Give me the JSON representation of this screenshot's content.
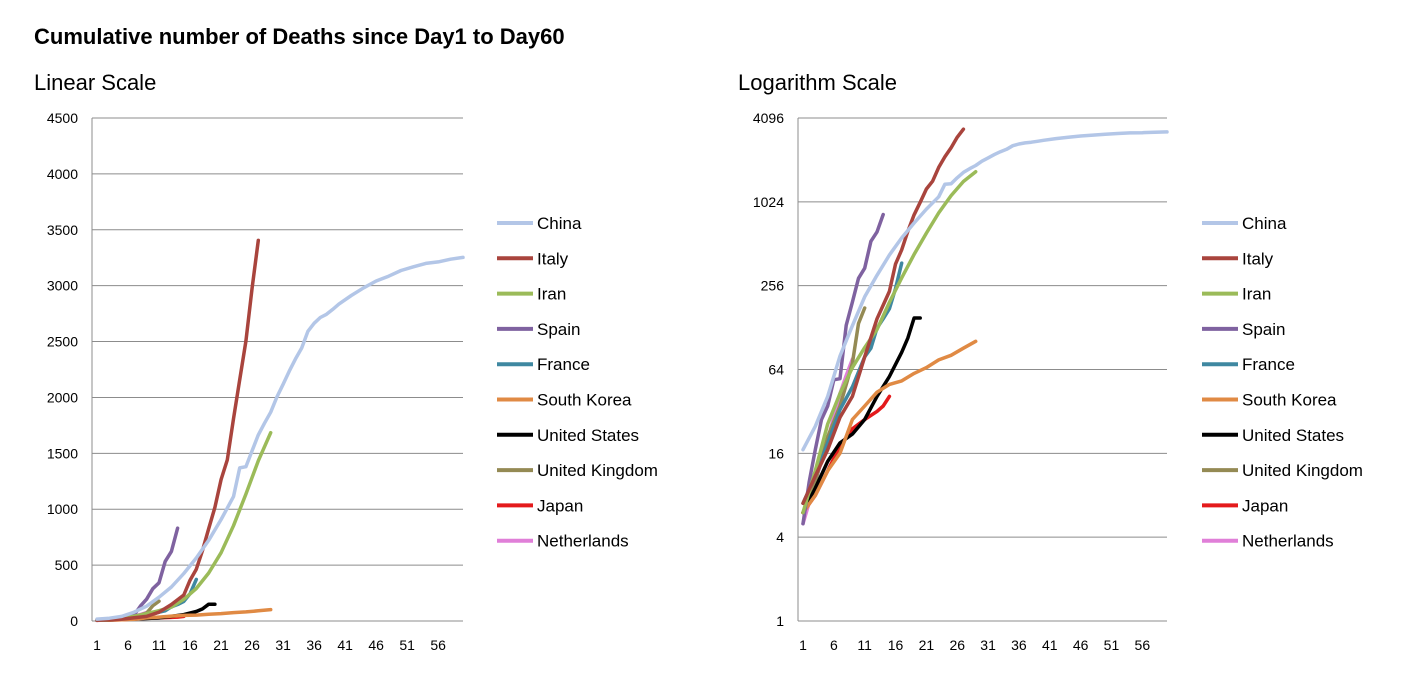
{
  "page": {
    "title": "Cumulative number of Deaths since Day1 to Day60",
    "linear_subtitle": "Linear Scale",
    "log_subtitle": "Logarithm Scale"
  },
  "chart_data": [
    {
      "type": "line",
      "title": "Linear Scale",
      "scale": "linear",
      "xlabel": "",
      "ylabel": "",
      "xlim": [
        1,
        60
      ],
      "ylim": [
        0,
        4500
      ],
      "x_ticks": [
        1,
        6,
        11,
        16,
        21,
        26,
        31,
        36,
        41,
        46,
        51,
        56
      ],
      "y_ticks": [
        0,
        500,
        1000,
        1500,
        2000,
        2500,
        3000,
        3500,
        4000,
        4500
      ],
      "grid": true,
      "legend": "right",
      "series": [
        {
          "name": "China",
          "color": "#b3c6e7",
          "x": [
            1,
            3,
            5,
            7,
            9,
            11,
            13,
            15,
            17,
            19,
            21,
            23,
            24,
            25,
            26,
            27,
            28,
            29,
            30,
            31,
            32,
            33,
            34,
            35,
            36,
            37,
            38,
            39,
            40,
            42,
            44,
            46,
            48,
            50,
            52,
            54,
            56,
            58,
            60
          ],
          "values": [
            17,
            25,
            41,
            80,
            132,
            213,
            304,
            425,
            564,
            722,
            908,
            1113,
            1370,
            1380,
            1523,
            1665,
            1770,
            1868,
            2004,
            2118,
            2236,
            2345,
            2442,
            2592,
            2663,
            2715,
            2744,
            2788,
            2835,
            2912,
            2981,
            3042,
            3085,
            3136,
            3169,
            3199,
            3213,
            3237,
            3253
          ]
        },
        {
          "name": "Italy",
          "color": "#a9443d",
          "x": [
            1,
            3,
            5,
            7,
            9,
            11,
            13,
            15,
            16,
            17,
            18,
            19,
            20,
            21,
            22,
            23,
            24,
            25,
            26,
            27
          ],
          "values": [
            7,
            11,
            17,
            29,
            41,
            79,
            148,
            233,
            366,
            463,
            631,
            827,
            1016,
            1266,
            1441,
            1809,
            2158,
            2503,
            2978,
            3405
          ]
        },
        {
          "name": "Iran",
          "color": "#9bbb59",
          "x": [
            1,
            3,
            5,
            7,
            9,
            11,
            13,
            15,
            17,
            19,
            21,
            23,
            25,
            27,
            29
          ],
          "values": [
            6,
            12,
            26,
            43,
            66,
            92,
            124,
            194,
            291,
            429,
            611,
            853,
            1135,
            1433,
            1685
          ]
        },
        {
          "name": "Spain",
          "color": "#7f62a0",
          "x": [
            1,
            2,
            3,
            4,
            5,
            6,
            7,
            8,
            9,
            10,
            11,
            12,
            13,
            14
          ],
          "values": [
            5,
            10,
            17,
            28,
            35,
            54,
            55,
            133,
            195,
            289,
            342,
            533,
            623,
            830
          ]
        },
        {
          "name": "France",
          "color": "#3f88a1",
          "x": [
            1,
            3,
            5,
            7,
            9,
            11,
            12,
            13,
            14,
            15,
            16,
            17
          ],
          "values": [
            7,
            11,
            19,
            33,
            48,
            79,
            91,
            127,
            148,
            175,
            244,
            372
          ]
        },
        {
          "name": "South Korea",
          "color": "#e08a44",
          "x": [
            1,
            3,
            5,
            7,
            9,
            11,
            13,
            15,
            17,
            19,
            21,
            23,
            25,
            27,
            29
          ],
          "values": [
            6,
            8,
            12,
            16,
            28,
            35,
            44,
            50,
            53,
            60,
            66,
            75,
            81,
            91,
            102
          ]
        },
        {
          "name": "United States",
          "color": "#000000",
          "x": [
            1,
            3,
            5,
            7,
            9,
            11,
            13,
            15,
            17,
            18,
            19,
            20
          ],
          "values": [
            6,
            9,
            14,
            19,
            22,
            28,
            41,
            57,
            85,
            108,
            150,
            150
          ]
        },
        {
          "name": "United Kingdom",
          "color": "#948a54",
          "x": [
            1,
            3,
            5,
            7,
            9,
            10,
            11
          ],
          "values": [
            6,
            10,
            21,
            35,
            71,
            137,
            177
          ]
        },
        {
          "name": "Japan",
          "color": "#e41a1c",
          "x": [
            1,
            3,
            5,
            7,
            9,
            11,
            13,
            14,
            15
          ],
          "values": [
            6,
            8,
            12,
            18,
            24,
            28,
            32,
            35,
            41
          ]
        },
        {
          "name": "Netherlands",
          "color": "#e07fd8",
          "x": [
            1,
            3,
            5,
            7,
            8,
            9
          ],
          "values": [
            5,
            10,
            20,
            43,
            58,
            76
          ]
        }
      ]
    },
    {
      "type": "line",
      "title": "Logarithm Scale",
      "scale": "log2",
      "xlabel": "",
      "ylabel": "",
      "xlim": [
        1,
        60
      ],
      "ylim": [
        1,
        4096
      ],
      "x_ticks": [
        1,
        6,
        11,
        16,
        21,
        26,
        31,
        36,
        41,
        46,
        51,
        56
      ],
      "y_ticks": [
        1,
        4,
        16,
        64,
        256,
        1024,
        4096
      ],
      "grid": true,
      "legend": "right",
      "series": "same as linear chart"
    }
  ],
  "legend": {
    "entries": [
      "China",
      "Italy",
      "Iran",
      "Spain",
      "France",
      "South Korea",
      "United States",
      "United Kingdom",
      "Japan",
      "Netherlands"
    ],
    "colors": [
      "#b3c6e7",
      "#a9443d",
      "#9bbb59",
      "#7f62a0",
      "#3f88a1",
      "#e08a44",
      "#000000",
      "#948a54",
      "#e41a1c",
      "#e07fd8"
    ]
  }
}
